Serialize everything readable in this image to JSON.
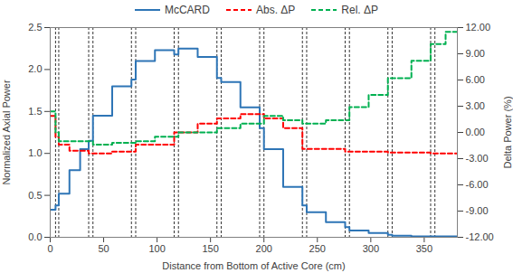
{
  "chart_data": {
    "type": "step",
    "xlabel": "Distance from Bottom of Active Core (cm)",
    "ylabel": "Normalized Axial Power",
    "y2label": "Delta Power (%)",
    "bins": [
      0,
      5,
      8,
      18,
      28,
      36,
      40,
      58,
      76,
      80,
      98,
      116,
      120,
      138,
      156,
      160,
      178,
      196,
      200,
      218,
      236,
      240,
      258,
      276,
      280,
      298,
      316,
      320,
      338,
      356,
      360,
      370,
      381
    ],
    "series": [
      {
        "name": "McCARD",
        "color": "#2e75b6",
        "line_style": "solid",
        "values": [
          0.33,
          0.38,
          0.52,
          0.8,
          1.05,
          1.15,
          1.45,
          1.8,
          1.88,
          2.1,
          2.23,
          2.18,
          2.25,
          2.15,
          1.9,
          1.85,
          1.55,
          1.3,
          1.05,
          0.6,
          0.38,
          0.3,
          0.18,
          0.12,
          0.08,
          0.05,
          0.03,
          0.02,
          0.01,
          0.01,
          0.01,
          0.01
        ]
      },
      {
        "name": "Abs. ΔP",
        "color": "#ff0000",
        "line_style": "dashed",
        "axis": "y2",
        "values": [
          1.9,
          -0.5,
          -1.4,
          -2.1,
          -2.1,
          -2.4,
          -2.4,
          -2.2,
          -2.2,
          -1.4,
          -1.4,
          0.0,
          0.0,
          1.0,
          1.6,
          1.6,
          2.1,
          2.1,
          1.6,
          0.5,
          -1.9,
          -1.9,
          -1.9,
          -2.2,
          -2.2,
          -2.2,
          -2.3,
          -2.3,
          -2.3,
          -2.4,
          -2.4,
          -2.4
        ]
      },
      {
        "name": "Rel. ΔP",
        "color": "#00b050",
        "line_style": "dashed",
        "axis": "y2",
        "values": [
          2.4,
          0.0,
          -1.0,
          -1.0,
          -1.0,
          -1.0,
          -1.4,
          -1.2,
          -1.2,
          -1.0,
          -0.5,
          -0.5,
          0.0,
          0.0,
          0.5,
          0.5,
          1.0,
          1.0,
          1.9,
          1.4,
          1.0,
          1.0,
          1.4,
          1.4,
          2.9,
          4.3,
          6.2,
          6.2,
          8.2,
          10.1,
          10.1,
          11.5
        ]
      }
    ],
    "vlines": [
      5,
      8,
      36,
      40,
      76,
      80,
      116,
      120,
      156,
      160,
      196,
      200,
      236,
      240,
      276,
      280,
      316,
      320,
      356,
      360
    ],
    "xlim": [
      0,
      381
    ],
    "xticks": [
      0,
      50,
      100,
      150,
      200,
      250,
      300,
      350
    ],
    "ylim": [
      0,
      2.5
    ],
    "yticks": [
      {
        "value": 0,
        "label": "0.0"
      },
      0.5,
      {
        "value": 1,
        "label": "1.0"
      },
      1.5,
      {
        "value": 2,
        "label": "2.0"
      },
      2.5
    ],
    "y2lim": [
      -12,
      12
    ],
    "y2ticks": [
      {
        "value": -12,
        "label": "-12.00"
      },
      {
        "value": -9,
        "label": "-9.00"
      },
      {
        "value": -6,
        "label": "-6.00"
      },
      {
        "value": -3,
        "label": "-3.00"
      },
      {
        "value": 0,
        "label": "0.00"
      },
      {
        "value": 3,
        "label": "3.00"
      },
      {
        "value": 6,
        "label": "6.00"
      },
      {
        "value": 9,
        "label": "9.00"
      },
      {
        "value": 12,
        "label": "12.00"
      }
    ],
    "legend": "top",
    "grid": false
  }
}
